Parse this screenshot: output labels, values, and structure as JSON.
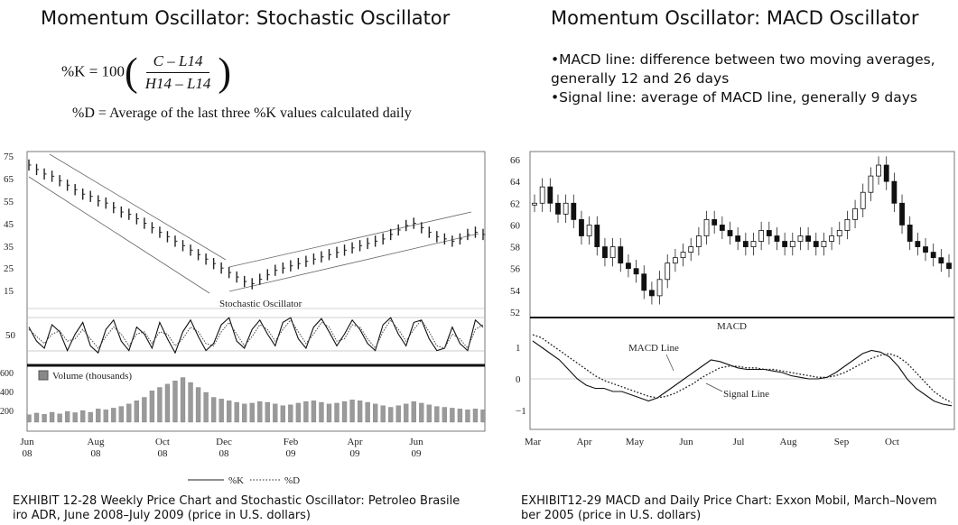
{
  "left": {
    "title": "Momentum Oscillator: Stochastic Oscillator",
    "formula": {
      "lhs": "%K = 100",
      "numerator": "C – L14",
      "denominator": "H14 – L14"
    },
    "d_line": "%D = Average of the last three %K values calculated daily",
    "caption_line1": "EXHIBIT 12-28 Weekly Price Chart and Stochastic Oscillator: Petroleo Brasile",
    "caption_line2": "iro ADR, June 2008–July 2009 (price in U.S. dollars)"
  },
  "right": {
    "title": "Momentum Oscillator: MACD Oscillator",
    "bullet1_line1": "•MACD line: difference between two moving averages,",
    "bullet1_line2": "generally 12 and 26 days",
    "bullet2": "•Signal line: average of MACD line, generally 9 days",
    "caption_line1": "EXHIBIT12-29 MACD and Daily Price Chart: Exxon Mobil, March–Novem",
    "caption_line2": "ber 2005 (price in U.S. dollars)"
  },
  "chart_data": [
    {
      "type": "line",
      "name_panel": "stochastic",
      "price_ticks": [
        "75",
        "65",
        "55",
        "45",
        "35",
        "25",
        "15"
      ],
      "stoch_label": "Stochastic Oscillator",
      "stoch_tick": "50",
      "volume_label": "Volume (thousands)",
      "volume_ticks": [
        "600",
        "400",
        "200"
      ],
      "x_labels": [
        {
          "mon": "Jun",
          "yr": "08"
        },
        {
          "mon": "Aug",
          "yr": "08"
        },
        {
          "mon": "Oct",
          "yr": "08"
        },
        {
          "mon": "Dec",
          "yr": "08"
        },
        {
          "mon": "Feb",
          "yr": "09"
        },
        {
          "mon": "Apr",
          "yr": "09"
        },
        {
          "mon": "Jun",
          "yr": "09"
        }
      ],
      "legend": [
        "%K",
        "%D"
      ],
      "price": [
        71,
        69,
        67,
        66,
        64,
        62,
        60,
        58,
        57,
        55,
        54,
        52,
        50,
        49,
        47,
        45,
        43,
        41,
        39,
        37,
        35,
        33,
        31,
        29,
        27,
        25,
        23,
        21,
        19,
        18,
        20,
        22,
        24,
        25,
        26,
        27,
        28,
        29,
        30,
        31,
        32,
        33,
        34,
        35,
        36,
        37,
        38,
        40,
        42,
        44,
        45,
        43,
        41,
        39,
        38,
        37,
        38,
        40,
        41,
        40
      ],
      "k": [
        70,
        40,
        25,
        75,
        60,
        20,
        55,
        80,
        30,
        15,
        65,
        85,
        40,
        20,
        70,
        55,
        25,
        80,
        45,
        15,
        60,
        85,
        50,
        20,
        35,
        75,
        90,
        40,
        25,
        65,
        85,
        55,
        30,
        80,
        90,
        45,
        25,
        70,
        88,
        60,
        30,
        55,
        85,
        65,
        35,
        20,
        75,
        90,
        55,
        30,
        80,
        85,
        45,
        20,
        25,
        70,
        35,
        20,
        85,
        70
      ],
      "d": [
        65,
        50,
        35,
        55,
        62,
        40,
        45,
        65,
        45,
        25,
        50,
        70,
        55,
        30,
        55,
        60,
        35,
        60,
        55,
        30,
        45,
        70,
        60,
        35,
        30,
        60,
        80,
        55,
        30,
        50,
        75,
        65,
        40,
        65,
        85,
        60,
        35,
        55,
        80,
        70,
        40,
        45,
        75,
        70,
        45,
        25,
        60,
        85,
        65,
        40,
        65,
        85,
        60,
        30,
        25,
        55,
        45,
        25,
        65,
        75
      ],
      "volume": [
        90,
        110,
        95,
        120,
        100,
        130,
        115,
        140,
        120,
        160,
        150,
        170,
        190,
        220,
        260,
        300,
        380,
        420,
        460,
        500,
        540,
        480,
        420,
        360,
        300,
        280,
        260,
        240,
        220,
        230,
        250,
        240,
        220,
        200,
        210,
        230,
        250,
        260,
        240,
        220,
        230,
        250,
        270,
        260,
        240,
        220,
        200,
        180,
        200,
        220,
        250,
        230,
        210,
        190,
        180,
        170,
        160,
        150,
        160,
        150
      ]
    },
    {
      "type": "line",
      "name_panel": "macd",
      "price_ticks": [
        "66",
        "64",
        "62",
        "60",
        "58",
        "56",
        "54",
        "52"
      ],
      "panel_label": "MACD",
      "macd_ticks": [
        "1",
        "0",
        "−1"
      ],
      "macd_line_label": "MACD Line",
      "signal_line_label": "Signal Line",
      "x_labels": [
        "Mar",
        "Apr",
        "May",
        "Jun",
        "Jul",
        "Aug",
        "Sep",
        "Oct"
      ],
      "price": [
        62,
        63.5,
        62,
        61,
        62,
        60.5,
        59,
        60,
        58,
        57,
        58,
        56.5,
        56,
        55.5,
        54,
        53.5,
        55,
        56.5,
        57,
        57.5,
        58,
        59,
        60.5,
        60,
        59.5,
        59,
        58.5,
        58,
        58.5,
        59.5,
        59,
        58.5,
        58,
        58.5,
        59,
        58.5,
        58,
        58.5,
        59,
        59.5,
        60.5,
        61.5,
        63,
        64.5,
        65.5,
        64,
        62,
        60,
        58.5,
        58,
        57.5,
        57,
        56.5,
        56
      ],
      "macd": [
        1.2,
        1.0,
        0.8,
        0.6,
        0.3,
        0.0,
        -0.2,
        -0.3,
        -0.3,
        -0.4,
        -0.4,
        -0.5,
        -0.6,
        -0.7,
        -0.6,
        -0.4,
        -0.2,
        0.0,
        0.2,
        0.4,
        0.6,
        0.55,
        0.45,
        0.35,
        0.3,
        0.3,
        0.3,
        0.25,
        0.2,
        0.1,
        0.05,
        0.0,
        0.0,
        0.05,
        0.2,
        0.4,
        0.6,
        0.8,
        0.9,
        0.85,
        0.7,
        0.4,
        0.0,
        -0.3,
        -0.5,
        -0.7,
        -0.8,
        -0.85
      ],
      "signal": [
        1.4,
        1.3,
        1.1,
        0.9,
        0.7,
        0.5,
        0.3,
        0.1,
        -0.05,
        -0.15,
        -0.25,
        -0.35,
        -0.45,
        -0.55,
        -0.6,
        -0.55,
        -0.45,
        -0.3,
        -0.15,
        0.05,
        0.2,
        0.35,
        0.4,
        0.4,
        0.35,
        0.35,
        0.3,
        0.3,
        0.25,
        0.2,
        0.15,
        0.1,
        0.05,
        0.05,
        0.1,
        0.2,
        0.35,
        0.5,
        0.65,
        0.75,
        0.8,
        0.7,
        0.5,
        0.2,
        -0.1,
        -0.4,
        -0.6,
        -0.75
      ]
    }
  ]
}
